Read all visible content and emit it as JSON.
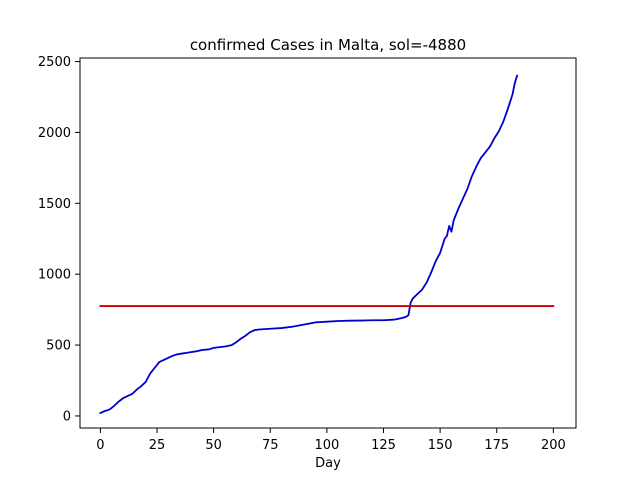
{
  "chart_data": {
    "type": "line",
    "title": "confirmed Cases in Malta, sol=-4880",
    "xlabel": "Day",
    "ylabel": "",
    "xlim": [
      -9,
      210
    ],
    "ylim": [
      -85,
      2525
    ],
    "xticks": [
      0,
      25,
      50,
      75,
      100,
      125,
      150,
      175,
      200
    ],
    "yticks": [
      0,
      500,
      1000,
      1500,
      2000,
      2500
    ],
    "grid": false,
    "series": [
      {
        "color": "#0000cc",
        "x": [
          0,
          2,
          4,
          6,
          8,
          10,
          12,
          14,
          16,
          18,
          20,
          22,
          23,
          24,
          25,
          26,
          28,
          30,
          32,
          34,
          36,
          38,
          40,
          42,
          45,
          48,
          50,
          55,
          58,
          60,
          62,
          64,
          66,
          68,
          70,
          75,
          80,
          85,
          90,
          95,
          100,
          105,
          110,
          115,
          120,
          125,
          130,
          133,
          135,
          136,
          137,
          138,
          140,
          142,
          144,
          146,
          148,
          150,
          152,
          153,
          154,
          155,
          156,
          158,
          160,
          162,
          164,
          166,
          168,
          170,
          172,
          174,
          176,
          178,
          180,
          182,
          183,
          184
        ],
        "y": [
          20,
          35,
          45,
          70,
          100,
          125,
          140,
          155,
          185,
          210,
          240,
          300,
          320,
          340,
          360,
          380,
          395,
          410,
          425,
          435,
          440,
          445,
          450,
          455,
          465,
          470,
          480,
          490,
          500,
          520,
          545,
          565,
          590,
          605,
          610,
          615,
          620,
          630,
          645,
          660,
          665,
          670,
          672,
          673,
          675,
          675,
          680,
          690,
          700,
          710,
          800,
          830,
          860,
          890,
          940,
          1010,
          1090,
          1150,
          1250,
          1270,
          1340,
          1300,
          1380,
          1460,
          1530,
          1600,
          1690,
          1760,
          1820,
          1860,
          1900,
          1960,
          2010,
          2080,
          2170,
          2270,
          2350,
          2400
        ]
      },
      {
        "color": "#cc0000",
        "x": [
          0,
          200
        ],
        "y": [
          775,
          775
        ]
      }
    ]
  }
}
